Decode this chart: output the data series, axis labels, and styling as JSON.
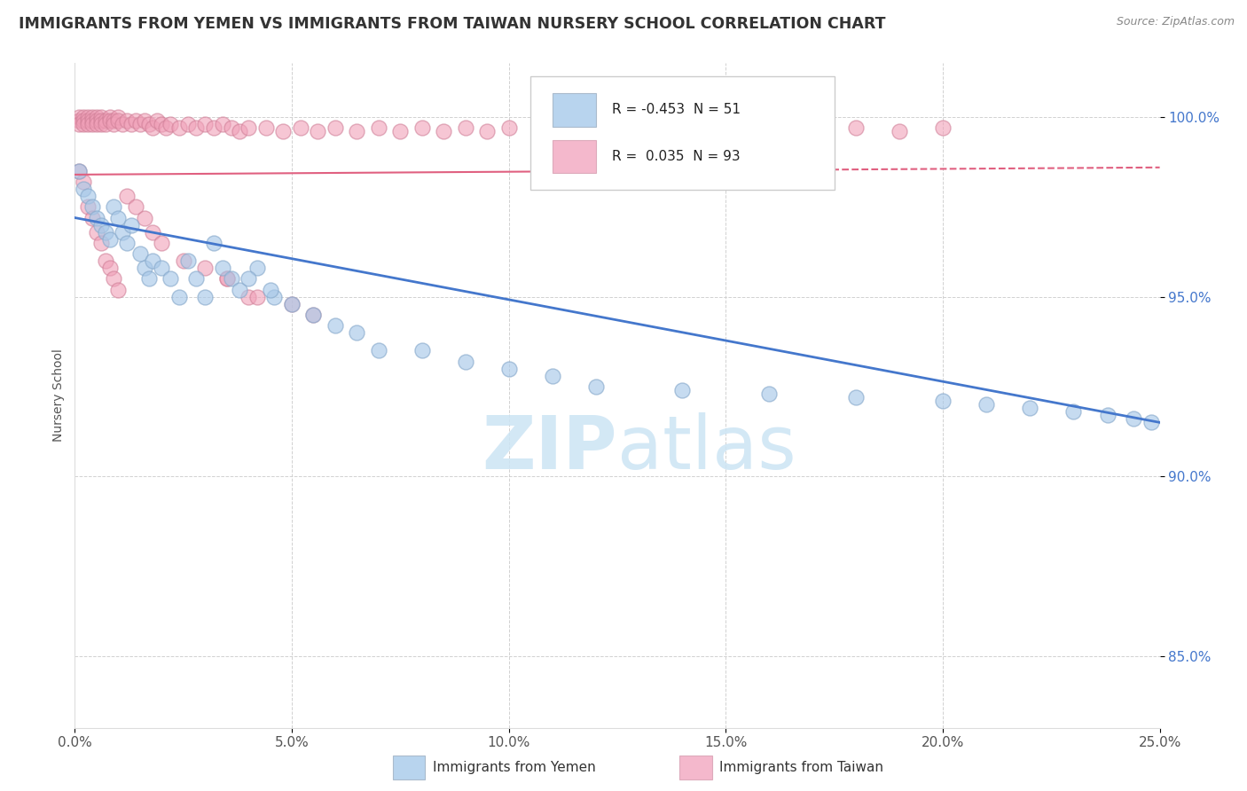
{
  "title": "IMMIGRANTS FROM YEMEN VS IMMIGRANTS FROM TAIWAN NURSERY SCHOOL CORRELATION CHART",
  "source": "Source: ZipAtlas.com",
  "ylabel": "Nursery School",
  "xlim": [
    0.0,
    0.25
  ],
  "ylim": [
    0.83,
    1.015
  ],
  "xticks": [
    0.0,
    0.05,
    0.1,
    0.15,
    0.2,
    0.25
  ],
  "xtick_labels": [
    "0.0%",
    "5.0%",
    "10.0%",
    "15.0%",
    "20.0%",
    "25.0%"
  ],
  "yticks": [
    0.85,
    0.9,
    0.95,
    1.0
  ],
  "ytick_labels": [
    "85.0%",
    "90.0%",
    "95.0%",
    "100.0%"
  ],
  "blue_scatter_color": "#a8c8e8",
  "blue_edge_color": "#88aacc",
  "pink_scatter_color": "#f0a0b8",
  "pink_edge_color": "#d08098",
  "blue_line_color": "#4477cc",
  "pink_line_color": "#e06080",
  "legend_blue_fill": "#b8d4ee",
  "legend_pink_fill": "#f4b8cc",
  "background_color": "#ffffff",
  "grid_color": "#cccccc",
  "title_color": "#333333",
  "source_color": "#888888",
  "ytick_color": "#4477cc",
  "watermark_color": "#cce4f4",
  "blue_R": "-0.453",
  "blue_N": "51",
  "pink_R": "0.035",
  "pink_N": "93",
  "label_yemen": "Immigrants from Yemen",
  "label_taiwan": "Immigrants from Taiwan",
  "yemen_x": [
    0.001,
    0.002,
    0.003,
    0.004,
    0.005,
    0.006,
    0.007,
    0.008,
    0.009,
    0.01,
    0.011,
    0.012,
    0.013,
    0.015,
    0.016,
    0.017,
    0.018,
    0.02,
    0.022,
    0.024,
    0.026,
    0.028,
    0.03,
    0.032,
    0.034,
    0.036,
    0.038,
    0.042,
    0.046,
    0.05,
    0.055,
    0.06,
    0.065,
    0.07,
    0.08,
    0.09,
    0.1,
    0.11,
    0.12,
    0.14,
    0.16,
    0.18,
    0.2,
    0.21,
    0.22,
    0.23,
    0.238,
    0.244,
    0.248,
    0.04,
    0.045
  ],
  "yemen_y": [
    0.985,
    0.98,
    0.978,
    0.975,
    0.972,
    0.97,
    0.968,
    0.966,
    0.975,
    0.972,
    0.968,
    0.965,
    0.97,
    0.962,
    0.958,
    0.955,
    0.96,
    0.958,
    0.955,
    0.95,
    0.96,
    0.955,
    0.95,
    0.965,
    0.958,
    0.955,
    0.952,
    0.958,
    0.95,
    0.948,
    0.945,
    0.942,
    0.94,
    0.935,
    0.935,
    0.932,
    0.93,
    0.928,
    0.925,
    0.924,
    0.923,
    0.922,
    0.921,
    0.92,
    0.919,
    0.918,
    0.917,
    0.916,
    0.915,
    0.955,
    0.952
  ],
  "taiwan_x": [
    0.001,
    0.001,
    0.001,
    0.002,
    0.002,
    0.002,
    0.003,
    0.003,
    0.003,
    0.004,
    0.004,
    0.004,
    0.005,
    0.005,
    0.005,
    0.006,
    0.006,
    0.006,
    0.007,
    0.007,
    0.008,
    0.008,
    0.009,
    0.009,
    0.01,
    0.01,
    0.011,
    0.012,
    0.013,
    0.014,
    0.015,
    0.016,
    0.017,
    0.018,
    0.019,
    0.02,
    0.021,
    0.022,
    0.024,
    0.026,
    0.028,
    0.03,
    0.032,
    0.034,
    0.036,
    0.038,
    0.04,
    0.044,
    0.048,
    0.052,
    0.056,
    0.06,
    0.065,
    0.07,
    0.075,
    0.08,
    0.085,
    0.09,
    0.095,
    0.1,
    0.11,
    0.12,
    0.13,
    0.14,
    0.15,
    0.16,
    0.17,
    0.18,
    0.19,
    0.2,
    0.001,
    0.002,
    0.003,
    0.004,
    0.005,
    0.006,
    0.007,
    0.008,
    0.009,
    0.01,
    0.012,
    0.014,
    0.016,
    0.018,
    0.02,
    0.025,
    0.03,
    0.035,
    0.04,
    0.05,
    0.035,
    0.042,
    0.055
  ],
  "taiwan_y": [
    1.0,
    0.999,
    0.998,
    1.0,
    0.999,
    0.998,
    1.0,
    0.999,
    0.998,
    1.0,
    0.999,
    0.998,
    1.0,
    0.999,
    0.998,
    1.0,
    0.999,
    0.998,
    0.999,
    0.998,
    1.0,
    0.999,
    0.999,
    0.998,
    1.0,
    0.999,
    0.998,
    0.999,
    0.998,
    0.999,
    0.998,
    0.999,
    0.998,
    0.997,
    0.999,
    0.998,
    0.997,
    0.998,
    0.997,
    0.998,
    0.997,
    0.998,
    0.997,
    0.998,
    0.997,
    0.996,
    0.997,
    0.997,
    0.996,
    0.997,
    0.996,
    0.997,
    0.996,
    0.997,
    0.996,
    0.997,
    0.996,
    0.997,
    0.996,
    0.997,
    0.996,
    0.997,
    0.996,
    0.997,
    0.996,
    0.997,
    0.996,
    0.997,
    0.996,
    0.997,
    0.985,
    0.982,
    0.975,
    0.972,
    0.968,
    0.965,
    0.96,
    0.958,
    0.955,
    0.952,
    0.978,
    0.975,
    0.972,
    0.968,
    0.965,
    0.96,
    0.958,
    0.955,
    0.95,
    0.948,
    0.955,
    0.95,
    0.945
  ]
}
